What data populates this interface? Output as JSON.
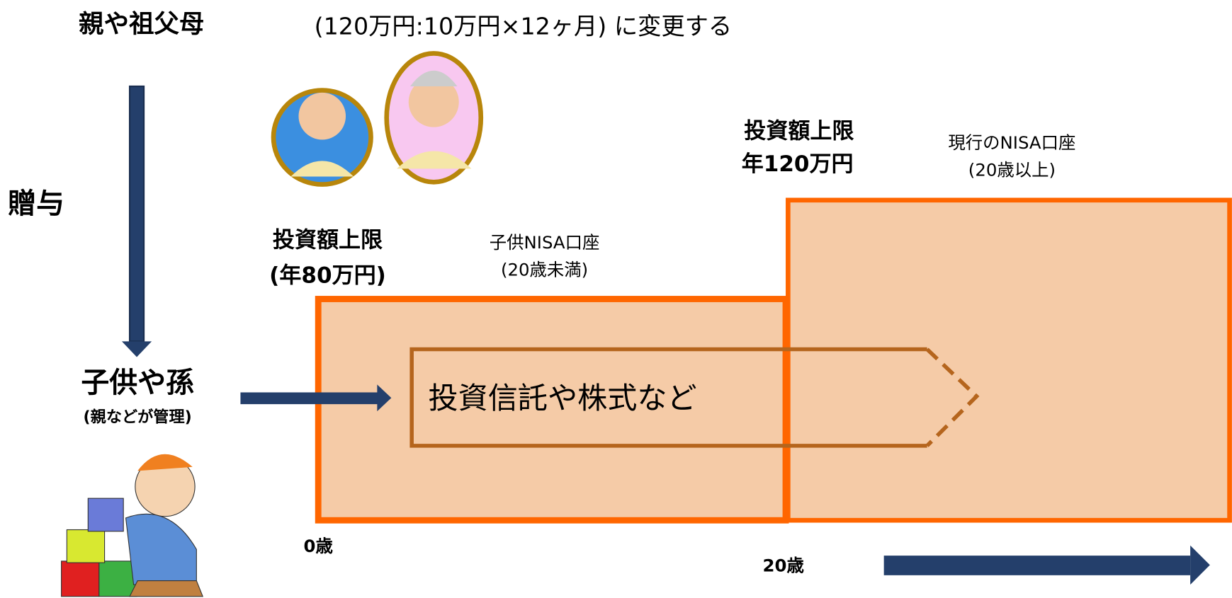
{
  "header": {
    "givers": "親や祖父母",
    "subtitle": "(120万円:10万円×12ヶ月) に変更する"
  },
  "gift": "贈与",
  "receivers": {
    "label": "子供や孫",
    "note": "(親などが管理)"
  },
  "adult_account": {
    "limit_title": "投資額上限",
    "limit": "年120万円",
    "name": "現行のNISA口座",
    "age": "(20歳以上)"
  },
  "child_account": {
    "limit_title": "投資額上限",
    "limit": "(年80万円)",
    "name": "子供NISA口座",
    "age": "(20歳未満)"
  },
  "investment": "投資信託や株式など",
  "timeline": {
    "start": "0歳",
    "switch": "20歳"
  }
}
